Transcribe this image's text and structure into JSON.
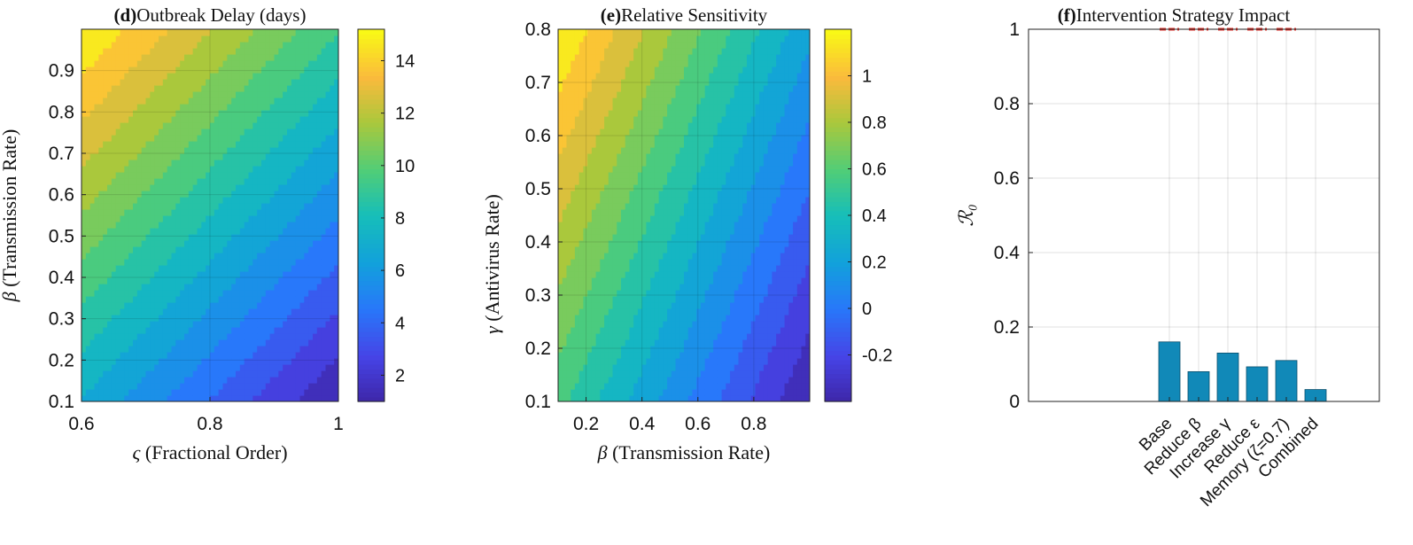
{
  "chart_data": [
    {
      "panel": "d",
      "type": "heatmap",
      "title_prefix": "(d)",
      "title": "Outbreak Delay (days)",
      "xlabel_symbol": "ς",
      "xlabel": "(Fractional Order)",
      "ylabel_symbol": "β",
      "ylabel": "(Transmission Rate)",
      "xlim": [
        0.6,
        1.0
      ],
      "ylim": [
        0.1,
        1.0
      ],
      "x_ticks": [
        0.6,
        0.8,
        1
      ],
      "x_tick_labels": [
        "0.6",
        "0.8",
        "1"
      ],
      "y_ticks": [
        0.1,
        0.2,
        0.3,
        0.4,
        0.5,
        0.6,
        0.7,
        0.8,
        0.9
      ],
      "y_tick_labels": [
        "0.1",
        "0.2",
        "0.3",
        "0.4",
        "0.5",
        "0.6",
        "0.7",
        "0.8",
        "0.9"
      ],
      "grid": true,
      "colorbar": {
        "range": [
          1,
          15.2
        ],
        "ticks": [
          2,
          4,
          6,
          8,
          10,
          12,
          14
        ],
        "tick_labels": [
          "2",
          "4",
          "6",
          "8",
          "10",
          "12",
          "14"
        ]
      },
      "value_at_corners": {
        "x0.6_y0.1": 7.0,
        "x1.0_y0.1": 1.0,
        "x0.6_y1.0": 15.2,
        "x1.0_y1.0": 9.2
      }
    },
    {
      "panel": "e",
      "type": "heatmap",
      "title_prefix": "(e)",
      "title": "Relative Sensitivity",
      "xlabel_symbol": "β",
      "xlabel": "(Transmission Rate)",
      "ylabel_symbol": "γ",
      "ylabel": "(Antivirus Rate)",
      "xlim": [
        0.1,
        1.0
      ],
      "ylim": [
        0.1,
        0.8
      ],
      "x_ticks": [
        0.2,
        0.4,
        0.6,
        0.8
      ],
      "x_tick_labels": [
        "0.2",
        "0.4",
        "0.6",
        "0.8"
      ],
      "y_ticks": [
        0.1,
        0.2,
        0.3,
        0.4,
        0.5,
        0.6,
        0.7,
        0.8
      ],
      "y_tick_labels": [
        "0.1",
        "0.2",
        "0.3",
        "0.4",
        "0.5",
        "0.6",
        "0.7",
        "0.8"
      ],
      "grid": true,
      "colorbar": {
        "range": [
          -0.4,
          1.2
        ],
        "ticks": [
          -0.2,
          0,
          0.2,
          0.4,
          0.6,
          0.8,
          1
        ],
        "tick_labels": [
          "-0.2",
          "0",
          "0.2",
          "0.4",
          "0.6",
          "0.8",
          "1"
        ]
      },
      "value_at_corners": {
        "x0.1_y0.1": 0.55,
        "x1.0_y0.1": -0.4,
        "x0.1_y0.8": 1.2,
        "x1.0_y0.8": 0.2
      }
    },
    {
      "panel": "f",
      "type": "bar",
      "title_prefix": "(f)",
      "title": "Intervention Strategy Impact",
      "ylabel": "ℛ₀",
      "categories": [
        "Base",
        "Reduce β",
        "Increase γ",
        "Reduce ε",
        "Memory (ζ=0.7)",
        "Combined"
      ],
      "values": [
        0.16,
        0.08,
        0.13,
        0.093,
        0.11,
        0.032
      ],
      "threshold_markers": [
        1,
        1,
        1,
        1,
        1
      ],
      "ylim": [
        0,
        1
      ],
      "y_ticks": [
        0,
        0.2,
        0.4,
        0.6,
        0.8,
        1
      ],
      "y_tick_labels": [
        "0",
        "0.2",
        "0.4",
        "0.6",
        "0.8",
        "1"
      ],
      "grid": true,
      "colors": {
        "bar": "#1189b8",
        "threshold": "#e8312b"
      }
    }
  ]
}
